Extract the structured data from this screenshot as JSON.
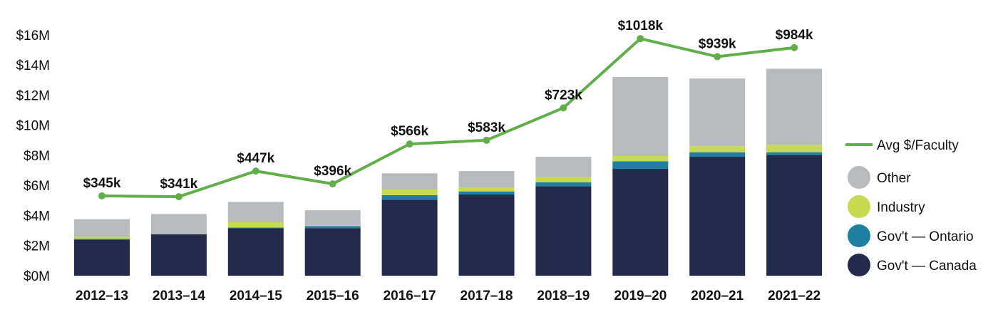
{
  "chart_data": {
    "type": "bar",
    "stacked": true,
    "categories": [
      "2012–13",
      "2013–14",
      "2014–15",
      "2015–16",
      "2016–17",
      "2017–18",
      "2018–19",
      "2019–20",
      "2020–21",
      "2021–22"
    ],
    "y_axis": {
      "ticks": [
        0,
        2,
        4,
        6,
        8,
        10,
        12,
        14,
        16
      ],
      "tick_labels": [
        "$0M",
        "$2M",
        "$4M",
        "$6M",
        "$8M",
        "$10M",
        "$12M",
        "$14M",
        "$16M"
      ],
      "ylim": [
        0,
        16
      ]
    },
    "series": [
      {
        "name": "Gov't — Canada",
        "color": "#232a4c",
        "values": [
          2.4,
          2.75,
          3.15,
          3.15,
          5.05,
          5.4,
          5.95,
          7.1,
          7.9,
          8.0
        ]
      },
      {
        "name": "Gov't — Ontario",
        "color": "#1f7fa1",
        "values": [
          0.05,
          0.0,
          0.05,
          0.15,
          0.3,
          0.2,
          0.25,
          0.5,
          0.3,
          0.2
        ]
      },
      {
        "name": "Industry",
        "color": "#c8da52",
        "values": [
          0.15,
          0.0,
          0.35,
          0.05,
          0.4,
          0.25,
          0.35,
          0.35,
          0.4,
          0.5
        ]
      },
      {
        "name": "Other",
        "color": "#b8bbbd",
        "values": [
          1.15,
          1.35,
          1.35,
          1.0,
          1.05,
          1.1,
          1.35,
          5.25,
          4.5,
          5.05
        ]
      }
    ],
    "line": {
      "name": "Avg $/Faculty",
      "color": "#62ae4b",
      "y_values": [
        5.3,
        5.25,
        6.95,
        6.1,
        8.75,
        9.0,
        11.15,
        15.75,
        14.55,
        15.15
      ],
      "labels": [
        "$345k",
        "$341k",
        "$447k",
        "$396k",
        "$566k",
        "$583k",
        "$723k",
        "$1018k",
        "$939k",
        "$984k"
      ]
    },
    "legend": {
      "position": "right",
      "items": [
        "Avg $/Faculty",
        "Other",
        "Industry",
        "Gov't — Ontario",
        "Gov't — Canada"
      ]
    },
    "grid": false
  }
}
